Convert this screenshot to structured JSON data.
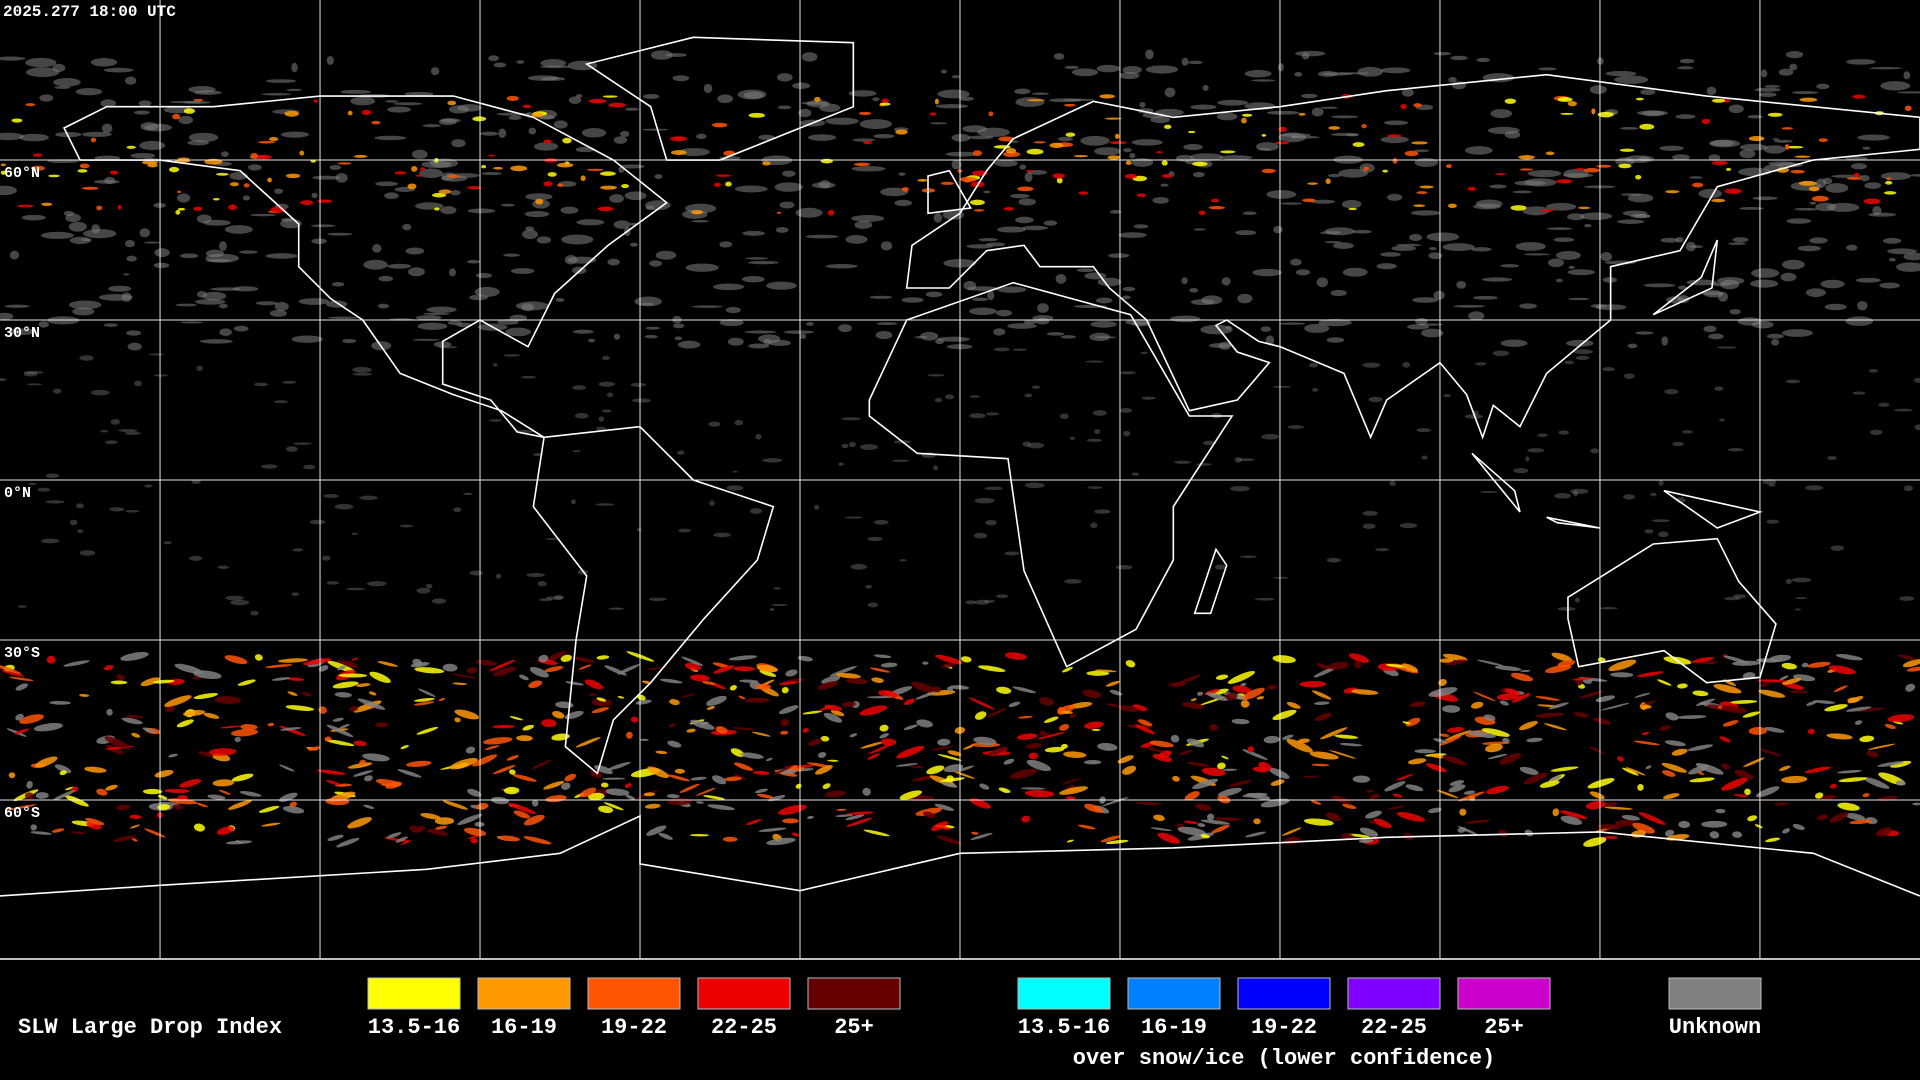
{
  "header": {
    "timestamp": "2025.277 18:00 UTC"
  },
  "map": {
    "lat_labels": [
      "60°N",
      "30°N",
      "0°N",
      "30°S",
      "60°S"
    ]
  },
  "legend": {
    "title": "SLW Large Drop Index",
    "groups": [
      {
        "items": [
          {
            "label": "13.5-16",
            "color": "#ffff00"
          },
          {
            "label": "16-19",
            "color": "#ff9900"
          },
          {
            "label": "19-22",
            "color": "#ff5500"
          },
          {
            "label": "22-25",
            "color": "#ee0000"
          },
          {
            "label": "25+",
            "color": "#660000"
          }
        ]
      },
      {
        "items": [
          {
            "label": "13.5-16",
            "color": "#00ffff"
          },
          {
            "label": "16-19",
            "color": "#0080ff"
          },
          {
            "label": "19-22",
            "color": "#0000ff"
          },
          {
            "label": "22-25",
            "color": "#7f00ff"
          },
          {
            "label": "25+",
            "color": "#cc00cc"
          }
        ],
        "note": "over snow/ice (lower confidence)"
      },
      {
        "items": [
          {
            "label": "Unknown",
            "color": "#808080"
          }
        ]
      }
    ]
  }
}
